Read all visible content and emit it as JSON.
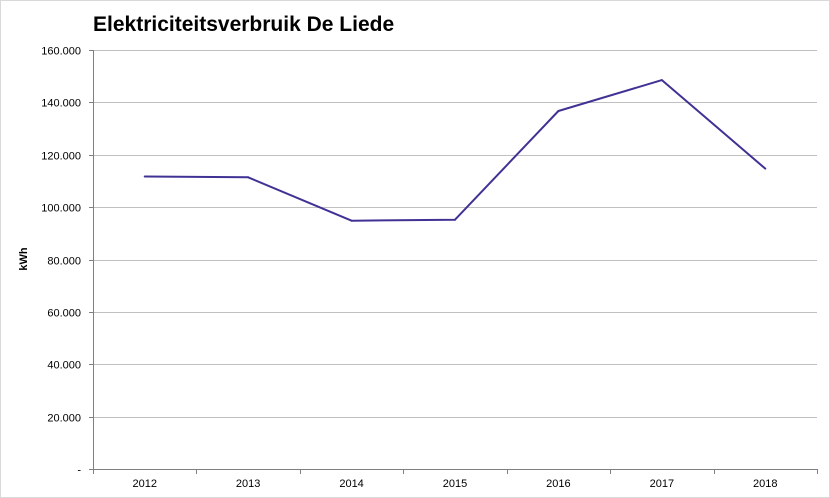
{
  "chart_data": {
    "type": "line",
    "title": "Elektriciteitsverbruik De Liede",
    "xlabel": "",
    "ylabel": "kWh",
    "categories": [
      "2012",
      "2013",
      "2014",
      "2015",
      "2016",
      "2017",
      "2018"
    ],
    "series": [
      {
        "values": [
          111700,
          111400,
          94800,
          95200,
          136700,
          148500,
          114700
        ],
        "color": "#403294"
      }
    ],
    "ylim": [
      0,
      160000
    ],
    "yticks": [
      0,
      20000,
      40000,
      60000,
      80000,
      100000,
      120000,
      140000,
      160000
    ],
    "ytick_labels": [
      "-",
      "20.000",
      "40.000",
      "60.000",
      "80.000",
      "100.000",
      "120.000",
      "140.000",
      "160.000"
    ],
    "grid": true,
    "legend": "none",
    "colors": {
      "line": "#403294",
      "grid": "#c0c0c0",
      "axis": "#808080"
    }
  }
}
